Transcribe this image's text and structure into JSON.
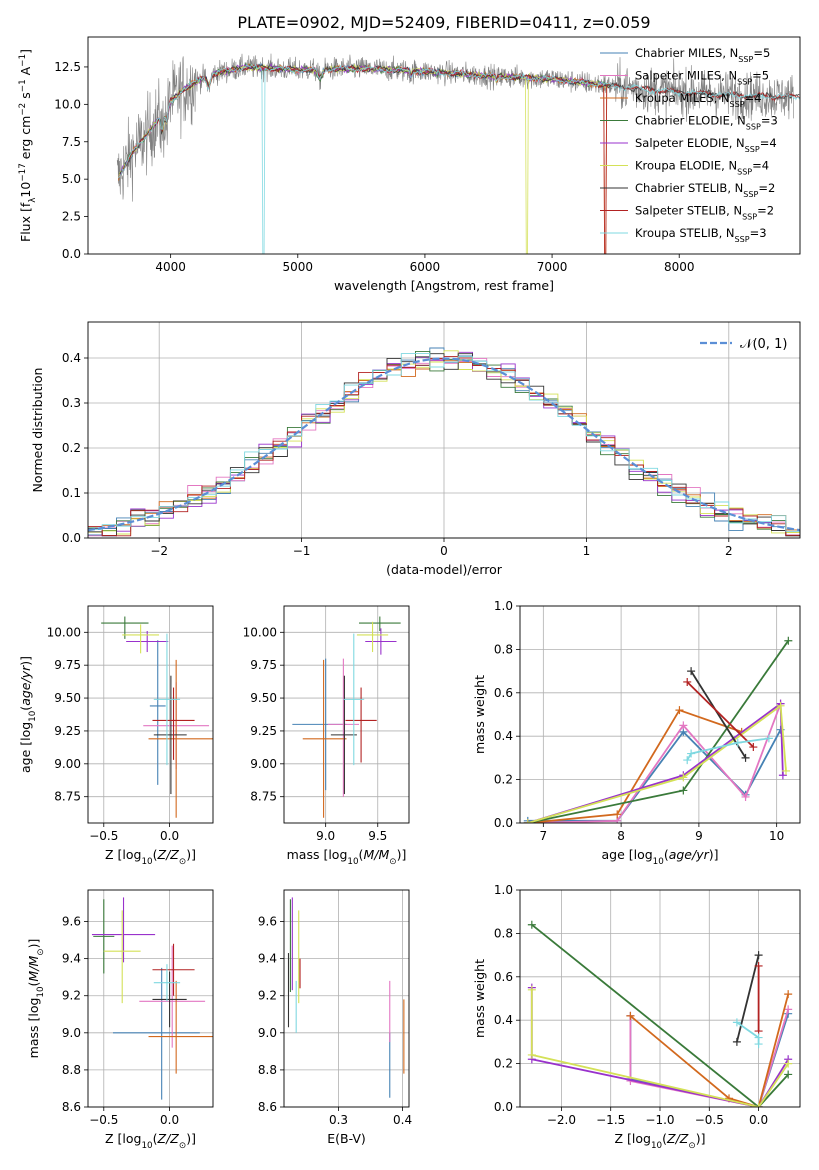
{
  "figure": {
    "title": "PLATE=0902, MJD=52409, FIBERID=0411, z=0.059"
  },
  "models": [
    {
      "name": "Chabrier MILES",
      "nssp": "5",
      "color": "#4682b4"
    },
    {
      "name": "Salpeter MILES",
      "nssp": "5",
      "color": "#e377c2"
    },
    {
      "name": "Kroupa MILES",
      "nssp": "4",
      "color": "#d2691e"
    },
    {
      "name": "Chabrier ELODIE",
      "nssp": "3",
      "color": "#3a7a3a"
    },
    {
      "name": "Salpeter ELODIE",
      "nssp": "4",
      "color": "#9932cc"
    },
    {
      "name": "Kroupa ELODIE",
      "nssp": "4",
      "color": "#d4e157"
    },
    {
      "name": "Chabrier STELIB",
      "nssp": "2",
      "color": "#333333"
    },
    {
      "name": "Salpeter STELIB",
      "nssp": "2",
      "color": "#b22222"
    },
    {
      "name": "Kroupa STELIB",
      "nssp": "3",
      "color": "#7fd8e0"
    }
  ],
  "chart_data": [
    {
      "id": "spectrum",
      "type": "line",
      "xlabel": "wavelength [Angstrom, rest frame]",
      "ylabel": "Flux [f_λ10^-17 erg cm^-2 s^-1 A^-1]",
      "xlim": [
        3350,
        8950
      ],
      "ylim": [
        0,
        14.5
      ],
      "xticks": [
        4000,
        5000,
        6000,
        7000,
        8000
      ],
      "yticks": [
        0,
        2.5,
        5.0,
        7.5,
        10.0,
        12.5
      ],
      "grid": false,
      "legend": "right",
      "data_color": "#808080",
      "continuum": [
        [
          3580,
          5.0
        ],
        [
          3700,
          6.8
        ],
        [
          3800,
          7.8
        ],
        [
          3900,
          9.0
        ],
        [
          4000,
          10.2
        ],
        [
          4100,
          11.0
        ],
        [
          4300,
          12.0
        ],
        [
          4600,
          12.5
        ],
        [
          5000,
          12.3
        ],
        [
          5500,
          12.4
        ],
        [
          6000,
          12.2
        ],
        [
          6500,
          11.9
        ],
        [
          7000,
          11.7
        ],
        [
          7500,
          11.2
        ],
        [
          8000,
          10.8
        ],
        [
          8500,
          10.6
        ],
        [
          8900,
          10.5
        ]
      ]
    },
    {
      "id": "residuals",
      "type": "histogram",
      "xlabel": "(data-model)/error",
      "ylabel": "Normed distribution",
      "xlim": [
        -2.5,
        2.5
      ],
      "ylim": [
        0,
        0.48
      ],
      "xticks": [
        -2,
        -1,
        0,
        1,
        2
      ],
      "yticks": [
        0.0,
        0.1,
        0.2,
        0.3,
        0.4
      ],
      "grid": true,
      "legend": "top-right",
      "reference": {
        "label": "N(0,1)",
        "color": "#5b8fd6"
      },
      "bin_width": 0.1
    },
    {
      "id": "age-vs-Z",
      "type": "scatter",
      "xlabel": "Z [log10(Z/Z⊙)]",
      "ylabel": "age [log10(age/yr)]",
      "xlim": [
        -0.62,
        0.33
      ],
      "ylim": [
        8.55,
        10.2
      ],
      "xticks": [
        -0.5,
        0.0
      ],
      "yticks": [
        8.75,
        9.0,
        9.25,
        9.5,
        9.75,
        10.0
      ],
      "grid": true,
      "points": [
        {
          "model": 0,
          "x": -0.09,
          "y": 9.44,
          "xerr": [
            0.06,
            0.06
          ],
          "yerr": [
            0.6,
            0.5
          ]
        },
        {
          "model": 1,
          "x": 0.05,
          "y": 9.29,
          "xerr": [
            0.25,
            0.25
          ],
          "yerr": [
            0.33,
            0.33
          ]
        },
        {
          "model": 2,
          "x": 0.05,
          "y": 9.19,
          "xerr": [
            0.21,
            0.28
          ],
          "yerr": [
            0.6,
            0.6
          ]
        },
        {
          "model": 3,
          "x": -0.34,
          "y": 10.07,
          "xerr": [
            0.18,
            0.18
          ],
          "yerr": [
            0.12,
            0.05
          ]
        },
        {
          "model": 4,
          "x": -0.17,
          "y": 9.93,
          "xerr": [
            0.16,
            0.16
          ],
          "yerr": [
            0.08,
            0.08
          ]
        },
        {
          "model": 5,
          "x": -0.22,
          "y": 9.98,
          "xerr": [
            0.14,
            0.14
          ],
          "yerr": [
            0.14,
            0.08
          ]
        },
        {
          "model": 6,
          "x": 0.01,
          "y": 9.22,
          "xerr": [
            0.13,
            0.12
          ],
          "yerr": [
            0.45,
            0.45
          ]
        },
        {
          "model": 7,
          "x": 0.03,
          "y": 9.33,
          "xerr": [
            0.16,
            0.16
          ],
          "yerr": [
            0.3,
            0.25
          ]
        },
        {
          "model": 8,
          "x": -0.02,
          "y": 9.49,
          "xerr": [
            0.1,
            0.1
          ],
          "yerr": [
            0.5,
            0.5
          ]
        }
      ]
    },
    {
      "id": "age-vs-mass",
      "type": "scatter",
      "xlabel": "mass [log10(M/M⊙)]",
      "ylabel": "",
      "xlim": [
        8.6,
        9.8
      ],
      "ylim": [
        8.55,
        10.2
      ],
      "xticks": [
        9.0,
        9.5
      ],
      "yticks": [
        8.75,
        9.0,
        9.25,
        9.5,
        9.75,
        10.0
      ],
      "grid": true,
      "points": [
        {
          "model": 0,
          "x": 9.0,
          "y": 9.3,
          "xerr": [
            0.32,
            0.2
          ],
          "yerr": [
            0.5,
            0.5
          ]
        },
        {
          "model": 1,
          "x": 9.17,
          "y": 9.3,
          "xerr": [
            0.15,
            0.15
          ],
          "yerr": [
            0.55,
            0.5
          ]
        },
        {
          "model": 2,
          "x": 8.98,
          "y": 9.19,
          "xerr": [
            0.2,
            0.22
          ],
          "yerr": [
            0.6,
            0.6
          ]
        },
        {
          "model": 3,
          "x": 9.52,
          "y": 10.07,
          "xerr": [
            0.2,
            0.2
          ],
          "yerr": [
            0.06,
            0.05
          ]
        },
        {
          "model": 4,
          "x": 9.53,
          "y": 9.93,
          "xerr": [
            0.15,
            0.15
          ],
          "yerr": [
            0.1,
            0.1
          ]
        },
        {
          "model": 5,
          "x": 9.45,
          "y": 9.98,
          "xerr": [
            0.15,
            0.15
          ],
          "yerr": [
            0.13,
            0.1
          ]
        },
        {
          "model": 6,
          "x": 9.18,
          "y": 9.22,
          "xerr": [
            0.13,
            0.12
          ],
          "yerr": [
            0.45,
            0.45
          ]
        },
        {
          "model": 7,
          "x": 9.34,
          "y": 9.33,
          "xerr": [
            0.15,
            0.15
          ],
          "yerr": [
            0.32,
            0.25
          ]
        },
        {
          "model": 8,
          "x": 9.27,
          "y": 9.49,
          "xerr": [
            0.1,
            0.1
          ],
          "yerr": [
            0.5,
            0.5
          ]
        }
      ]
    },
    {
      "id": "weight-vs-age",
      "type": "line",
      "xlabel": "age [log10(age/yr)]",
      "ylabel": "mass weight",
      "xlim": [
        6.7,
        10.3
      ],
      "ylim": [
        0,
        1.0
      ],
      "xticks": [
        7,
        8,
        9,
        10
      ],
      "yticks": [
        0.0,
        0.2,
        0.4,
        0.6,
        0.8,
        1.0
      ],
      "grid": true,
      "series": [
        {
          "model": 0,
          "x": [
            6.8,
            7.95,
            8.8,
            9.6,
            10.05
          ],
          "y": [
            0.01,
            0.01,
            0.42,
            0.13,
            0.43
          ]
        },
        {
          "model": 1,
          "x": [
            6.8,
            7.95,
            8.8,
            9.6,
            10.05
          ],
          "y": [
            0.0,
            0.01,
            0.45,
            0.12,
            0.55
          ]
        },
        {
          "model": 2,
          "x": [
            6.8,
            7.95,
            8.75,
            9.55
          ],
          "y": [
            0.0,
            0.04,
            0.52,
            0.42
          ]
        },
        {
          "model": 3,
          "x": [
            6.8,
            8.8,
            10.15
          ],
          "y": [
            0.0,
            0.15,
            0.84
          ]
        },
        {
          "model": 4,
          "x": [
            6.8,
            8.8,
            10.05,
            10.08
          ],
          "y": [
            0.0,
            0.22,
            0.55,
            0.22
          ]
        },
        {
          "model": 5,
          "x": [
            6.8,
            8.8,
            10.05,
            10.12
          ],
          "y": [
            0.0,
            0.21,
            0.54,
            0.24
          ]
        },
        {
          "model": 6,
          "x": [
            8.9,
            9.6
          ],
          "y": [
            0.7,
            0.3
          ]
        },
        {
          "model": 7,
          "x": [
            8.85,
            9.7
          ],
          "y": [
            0.65,
            0.35
          ]
        },
        {
          "model": 8,
          "x": [
            8.85,
            8.9,
            9.5,
            9.9
          ],
          "y": [
            0.29,
            0.32,
            0.37,
            0.39
          ]
        }
      ]
    },
    {
      "id": "mass-vs-Z",
      "type": "scatter",
      "xlabel": "Z [log10(Z/Z⊙)]",
      "ylabel": "mass [log10(M/M⊙)]",
      "xlim": [
        -0.62,
        0.33
      ],
      "ylim": [
        8.6,
        9.77
      ],
      "xticks": [
        -0.5,
        0.0
      ],
      "yticks": [
        8.6,
        8.8,
        9.0,
        9.2,
        9.4,
        9.6
      ],
      "grid": true,
      "points": [
        {
          "model": 0,
          "x": -0.06,
          "y": 9.0,
          "xerr": [
            0.37,
            0.29
          ],
          "yerr": [
            0.36,
            0.35
          ]
        },
        {
          "model": 1,
          "x": 0.02,
          "y": 9.17,
          "xerr": [
            0.25,
            0.25
          ],
          "yerr": [
            0.25,
            0.3
          ]
        },
        {
          "model": 2,
          "x": 0.05,
          "y": 8.98,
          "xerr": [
            0.21,
            0.28
          ],
          "yerr": [
            0.2,
            0.3
          ]
        },
        {
          "model": 3,
          "x": -0.5,
          "y": 9.52,
          "xerr": [
            0.08,
            0.08
          ],
          "yerr": [
            0.2,
            0.2
          ]
        },
        {
          "model": 4,
          "x": -0.35,
          "y": 9.53,
          "xerr": [
            0.24,
            0.24
          ],
          "yerr": [
            0.15,
            0.2
          ]
        },
        {
          "model": 5,
          "x": -0.36,
          "y": 9.44,
          "xerr": [
            0.14,
            0.14
          ],
          "yerr": [
            0.28,
            0.22
          ]
        },
        {
          "model": 6,
          "x": 0.0,
          "y": 9.18,
          "xerr": [
            0.13,
            0.13
          ],
          "yerr": [
            0.15,
            0.15
          ]
        },
        {
          "model": 7,
          "x": 0.03,
          "y": 9.34,
          "xerr": [
            0.16,
            0.16
          ],
          "yerr": [
            0.14,
            0.14
          ]
        },
        {
          "model": 8,
          "x": -0.02,
          "y": 9.27,
          "xerr": [
            0.1,
            0.1
          ],
          "yerr": [
            0.1,
            0.1
          ]
        }
      ]
    },
    {
      "id": "mass-vs-ebv",
      "type": "scatter",
      "xlabel": "E(B-V)",
      "ylabel": "",
      "xlim": [
        0.215,
        0.41
      ],
      "ylim": [
        8.6,
        9.77
      ],
      "xticks": [
        0.3,
        0.4
      ],
      "yticks": [
        8.6,
        8.8,
        9.0,
        9.2,
        9.4,
        9.6
      ],
      "grid": true,
      "points": [
        {
          "model": 0,
          "x": 0.38,
          "y": 9.0,
          "xerr": [
            0,
            0
          ],
          "yerr": [
            0.35,
            0.0
          ]
        },
        {
          "model": 1,
          "x": 0.38,
          "y": 9.2,
          "xerr": [
            0,
            0
          ],
          "yerr": [
            0.25,
            0.08
          ]
        },
        {
          "model": 2,
          "x": 0.402,
          "y": 8.98,
          "xerr": [
            0,
            0
          ],
          "yerr": [
            0.2,
            0.2
          ]
        },
        {
          "model": 3,
          "x": 0.225,
          "y": 9.52,
          "xerr": [
            0,
            0
          ],
          "yerr": [
            0.3,
            0.2
          ]
        },
        {
          "model": 4,
          "x": 0.228,
          "y": 9.53,
          "xerr": [
            0,
            0
          ],
          "yerr": [
            0.3,
            0.2
          ]
        },
        {
          "model": 5,
          "x": 0.238,
          "y": 9.44,
          "xerr": [
            0,
            0
          ],
          "yerr": [
            0.28,
            0.22
          ]
        },
        {
          "model": 6,
          "x": 0.222,
          "y": 9.18,
          "xerr": [
            0,
            0
          ],
          "yerr": [
            0.15,
            0.25
          ]
        },
        {
          "model": 7,
          "x": 0.24,
          "y": 9.34,
          "xerr": [
            0,
            0
          ],
          "yerr": [
            0.1,
            0.06
          ]
        },
        {
          "model": 8,
          "x": 0.234,
          "y": 9.1,
          "xerr": [
            0,
            0
          ],
          "yerr": [
            0.1,
            0.18
          ]
        }
      ]
    },
    {
      "id": "weight-vs-Z",
      "type": "line",
      "xlabel": "Z [log10(Z/Z⊙)]",
      "ylabel": "mass weight",
      "xlim": [
        -2.42,
        0.42
      ],
      "ylim": [
        0,
        1.0
      ],
      "xticks": [
        -2.0,
        -1.5,
        -1.0,
        -0.5,
        0.0
      ],
      "yticks": [
        0.0,
        0.2,
        0.4,
        0.6,
        0.8,
        1.0
      ],
      "grid": true,
      "series": [
        {
          "model": 0,
          "x": [
            -1.3,
            -1.3,
            0.0,
            0.3
          ],
          "y": [
            0.42,
            0.13,
            0.0,
            0.43
          ]
        },
        {
          "model": 1,
          "x": [
            -1.3,
            -1.3,
            0.0,
            0.3
          ],
          "y": [
            0.42,
            0.12,
            0.0,
            0.45
          ]
        },
        {
          "model": 2,
          "x": [
            -1.3,
            -0.3,
            0.0,
            0.3
          ],
          "y": [
            0.42,
            0.04,
            0.0,
            0.52
          ]
        },
        {
          "model": 3,
          "x": [
            -2.3,
            0.0,
            0.3
          ],
          "y": [
            0.84,
            0.0,
            0.15
          ]
        },
        {
          "model": 4,
          "x": [
            -2.3,
            -2.3,
            0.0,
            0.3
          ],
          "y": [
            0.55,
            0.22,
            0.0,
            0.22
          ]
        },
        {
          "model": 5,
          "x": [
            -2.3,
            -2.3,
            0.0,
            0.3
          ],
          "y": [
            0.54,
            0.24,
            0.0,
            0.2
          ]
        },
        {
          "model": 6,
          "x": [
            -0.22,
            0.0
          ],
          "y": [
            0.3,
            0.7
          ]
        },
        {
          "model": 7,
          "x": [
            0.0,
            0.0
          ],
          "y": [
            0.35,
            0.65
          ]
        },
        {
          "model": 8,
          "x": [
            -0.22,
            0.0,
            0.0
          ],
          "y": [
            0.39,
            0.32,
            0.29
          ]
        }
      ]
    }
  ]
}
